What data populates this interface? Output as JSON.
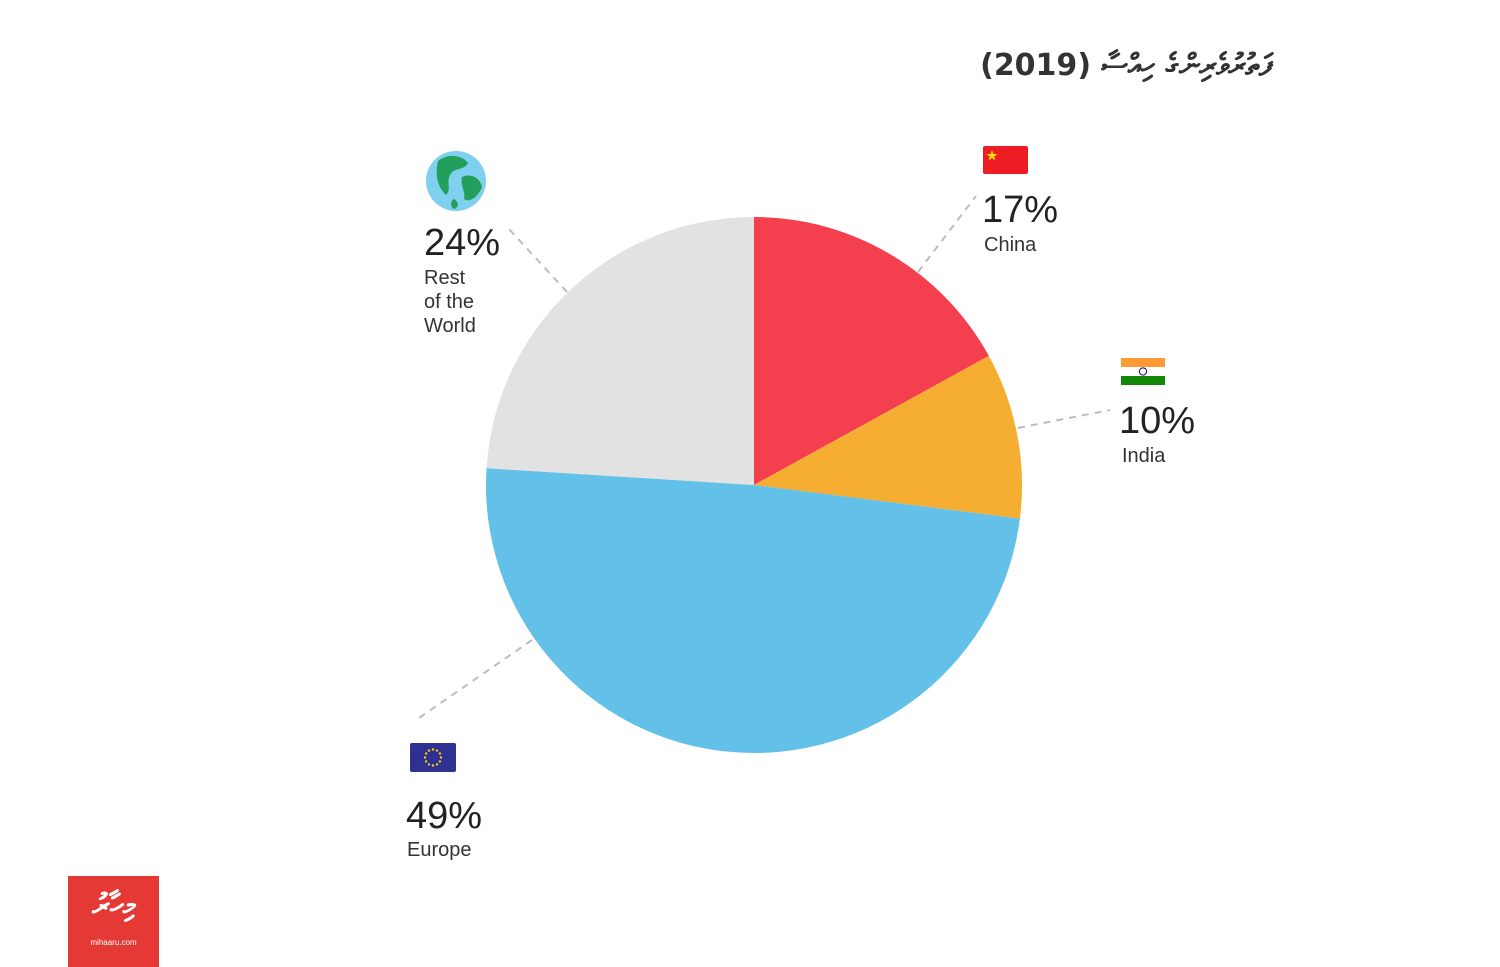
{
  "title": "ފަތުރުވެރިންގެ ހިއްސާ (2019)",
  "chart_data": {
    "type": "pie",
    "title": "ފަތުރުވެރިންގެ ހިއްސާ (2019)",
    "slices": [
      {
        "label": "China",
        "value": 17,
        "pct_label": "17%",
        "color": "#f4404e",
        "flag": "china-flag-icon"
      },
      {
        "label": "India",
        "value": 10,
        "pct_label": "10%",
        "color": "#f5ae32",
        "flag": "india-flag-icon"
      },
      {
        "label": "Europe",
        "value": 49,
        "pct_label": "49%",
        "color": "#63c0e8",
        "flag": "eu-flag-icon"
      },
      {
        "label": "Rest\nof the\nWorld",
        "value": 24,
        "pct_label": "24%",
        "color": "#e2e2e2",
        "flag": "globe-icon"
      }
    ]
  },
  "logo": {
    "mark": "މިހާރު",
    "site": "mihaaru.com",
    "color": "#e53935"
  }
}
